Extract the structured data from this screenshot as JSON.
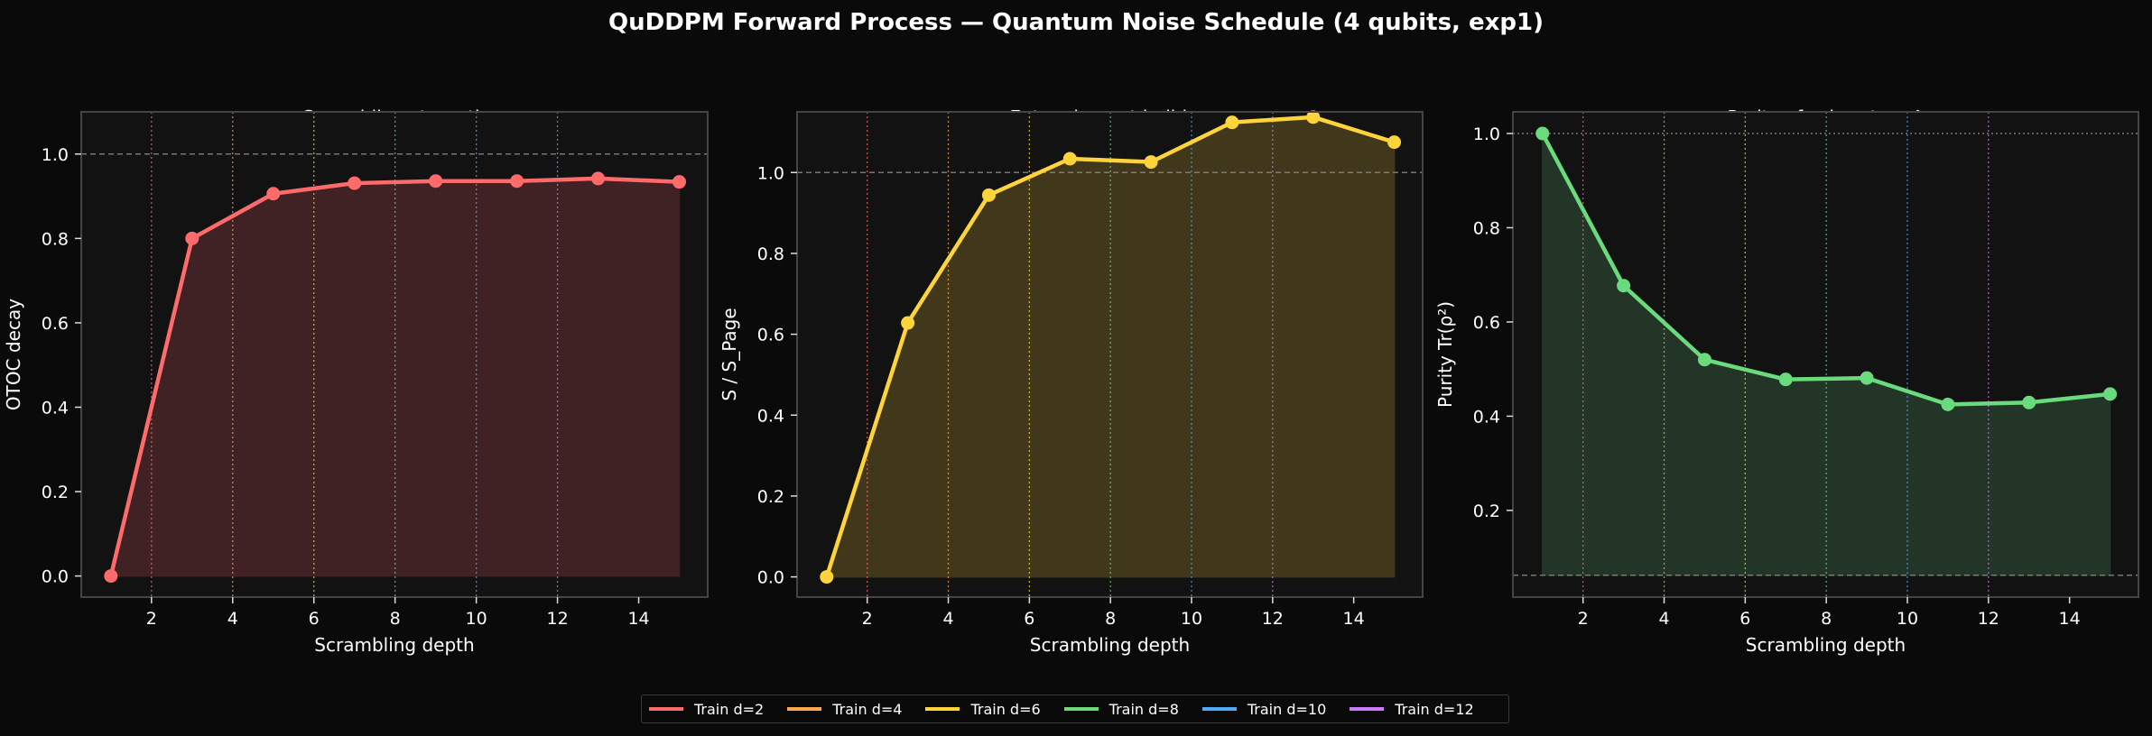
{
  "figure": {
    "suptitle": "QuDDPM Forward Process — Quantum Noise Schedule (4 qubits, exp1)",
    "background": "#0a0a0a",
    "axes_background": "#121212",
    "spine_color": "#444444"
  },
  "legend": {
    "position": "lower center",
    "items": [
      {
        "label": "Train d=2",
        "color": "#ff6b6b"
      },
      {
        "label": "Train d=4",
        "color": "#ffa94d"
      },
      {
        "label": "Train d=6",
        "color": "#ffd43b"
      },
      {
        "label": "Train d=8",
        "color": "#69db7c"
      },
      {
        "label": "Train d=10",
        "color": "#4dabf7"
      },
      {
        "label": "Train d=12",
        "color": "#cc7aff"
      }
    ]
  },
  "chart_data": [
    {
      "type": "line",
      "title": "Scrambling strength\n(OTOC decay)",
      "title_line1": "Scrambling strength",
      "title_line2": "(OTOC decay)",
      "xlabel": "Scrambling depth",
      "ylabel": "OTOC decay",
      "x": [
        1,
        3,
        5,
        7,
        9,
        11,
        13,
        15
      ],
      "series": [
        {
          "name": "OTOC decay",
          "values": [
            0.0,
            0.8,
            0.906,
            0.931,
            0.936,
            0.936,
            0.942,
            0.934
          ],
          "color": "#ff6b6b",
          "fill": "#412224"
        }
      ],
      "xlim": [
        0.27,
        15.7
      ],
      "ylim": [
        -0.05,
        1.1
      ],
      "xticks": [
        2,
        4,
        6,
        8,
        10,
        12,
        14
      ],
      "yticks": [
        0.0,
        0.2,
        0.4,
        0.6,
        0.8,
        1.0
      ],
      "ytick_labels": [
        "0.0",
        "0.2",
        "0.4",
        "0.6",
        "0.8",
        "1.0"
      ],
      "reference_line": {
        "y": 1.0,
        "style": "dashed"
      },
      "train_depth_markers": [
        2,
        4,
        6,
        8,
        10,
        12
      ],
      "grid": false
    },
    {
      "type": "line",
      "title": "Entanglement buildup\n(normalized to Page value)",
      "title_line1": "Entanglement buildup",
      "title_line2": "(normalized to Page value)",
      "xlabel": "Scrambling depth",
      "ylabel": "S / S_Page",
      "x": [
        1,
        3,
        5,
        7,
        9,
        11,
        13,
        15
      ],
      "series": [
        {
          "name": "S / S_Page",
          "values": [
            0.0,
            0.628,
            0.944,
            1.034,
            1.026,
            1.124,
            1.137,
            1.075
          ],
          "color": "#ffd43b",
          "fill": "#41381c"
        }
      ],
      "xlim": [
        0.27,
        15.7
      ],
      "ylim": [
        -0.05,
        1.15
      ],
      "xticks": [
        2,
        4,
        6,
        8,
        10,
        12,
        14
      ],
      "yticks": [
        0.0,
        0.2,
        0.4,
        0.6,
        0.8,
        1.0
      ],
      "ytick_labels": [
        "0.0",
        "0.2",
        "0.4",
        "0.6",
        "0.8",
        "1.0"
      ],
      "reference_line": {
        "y": 1.0,
        "style": "dashed"
      },
      "train_depth_markers": [
        2,
        4,
        6,
        8,
        10,
        12
      ],
      "grid": false
    },
    {
      "type": "line",
      "title": "Purity of subsystem A\n(measures mixedness)",
      "title_line1": "Purity of subsystem A",
      "title_line2": "(measures mixedness)",
      "xlabel": "Scrambling depth",
      "ylabel": "Purity Tr(ρ²)",
      "x": [
        1,
        3,
        5,
        7,
        9,
        11,
        13,
        15
      ],
      "series": [
        {
          "name": "Purity",
          "values": [
            1.0,
            0.677,
            0.52,
            0.478,
            0.481,
            0.425,
            0.429,
            0.447
          ],
          "color": "#69db7c",
          "fill": "#223526"
        }
      ],
      "xlim": [
        0.27,
        15.7
      ],
      "ylim": [
        0.016,
        1.046
      ],
      "xticks": [
        2,
        4,
        6,
        8,
        10,
        12,
        14
      ],
      "yticks": [
        0.2,
        0.4,
        0.6,
        0.8,
        1.0
      ],
      "ytick_labels": [
        "0.2",
        "0.4",
        "0.6",
        "0.8",
        "1.0"
      ],
      "reference_line": {
        "y": 1.0,
        "style": "dotted"
      },
      "reference_line_2": {
        "y": 0.0625,
        "style": "dashed"
      },
      "fill_baseline": 0.0625,
      "train_depth_markers": [
        2,
        4,
        6,
        8,
        10,
        12
      ],
      "grid": false
    }
  ]
}
